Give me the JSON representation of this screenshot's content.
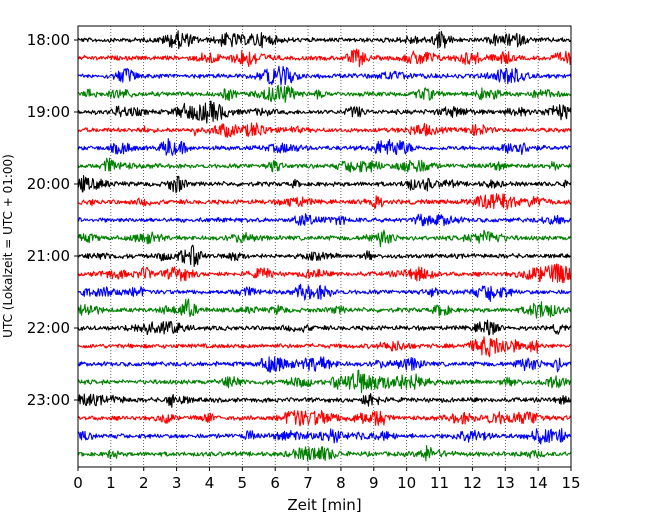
{
  "chart_data": {
    "type": "line",
    "title": "",
    "xlabel": "Zeit  [min]",
    "ylabel": "UTC (Lokalzeit = UTC + 01:00)",
    "xlim": [
      0,
      15
    ],
    "x_ticks": [
      "0",
      "1",
      "2",
      "3",
      "4",
      "5",
      "6",
      "7",
      "8",
      "9",
      "10",
      "11",
      "12",
      "13",
      "14",
      "15"
    ],
    "y_ticks": [
      "18:00",
      "19:00",
      "20:00",
      "21:00",
      "22:00",
      "23:00"
    ],
    "grid": "vertical dotted",
    "trace_colors": [
      "#000000",
      "#ff0000",
      "#0000ff",
      "#008000"
    ],
    "traces": [
      {
        "start": "18:00",
        "color": "#000000"
      },
      {
        "start": "18:15",
        "color": "#ff0000"
      },
      {
        "start": "18:30",
        "color": "#0000ff"
      },
      {
        "start": "18:45",
        "color": "#008000"
      },
      {
        "start": "19:00",
        "color": "#000000"
      },
      {
        "start": "19:15",
        "color": "#ff0000"
      },
      {
        "start": "19:30",
        "color": "#0000ff"
      },
      {
        "start": "19:45",
        "color": "#008000"
      },
      {
        "start": "20:00",
        "color": "#000000"
      },
      {
        "start": "20:15",
        "color": "#ff0000"
      },
      {
        "start": "20:30",
        "color": "#0000ff"
      },
      {
        "start": "20:45",
        "color": "#008000"
      },
      {
        "start": "21:00",
        "color": "#000000"
      },
      {
        "start": "21:15",
        "color": "#ff0000"
      },
      {
        "start": "21:30",
        "color": "#0000ff"
      },
      {
        "start": "21:45",
        "color": "#008000"
      },
      {
        "start": "22:00",
        "color": "#000000"
      },
      {
        "start": "22:15",
        "color": "#ff0000"
      },
      {
        "start": "22:30",
        "color": "#0000ff"
      },
      {
        "start": "22:45",
        "color": "#008000"
      },
      {
        "start": "23:00",
        "color": "#000000"
      },
      {
        "start": "23:15",
        "color": "#ff0000"
      },
      {
        "start": "23:30",
        "color": "#0000ff"
      },
      {
        "start": "23:45",
        "color": "#008000"
      }
    ]
  }
}
